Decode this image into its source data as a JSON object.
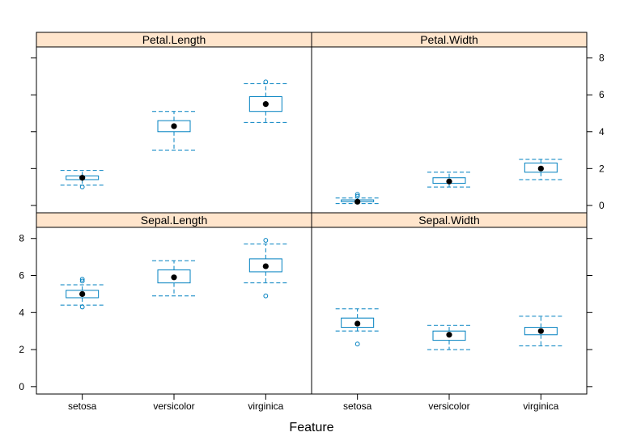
{
  "chart_data": {
    "type": "boxplot",
    "xlabel": "Feature",
    "categories": [
      "setosa",
      "versicolor",
      "virginica"
    ],
    "ylim": [
      -0.4,
      8.6
    ],
    "yticks": [
      0,
      2,
      4,
      6,
      8
    ],
    "grid": false,
    "colors": {
      "strip": "#ffe5cc",
      "box": "#0080c0",
      "median": "#000000",
      "frame": "#000000"
    },
    "panels": [
      {
        "title": "Petal.Length",
        "boxes": [
          {
            "category": "setosa",
            "min": 1.1,
            "q1": 1.4,
            "median": 1.5,
            "q3": 1.6,
            "max": 1.9,
            "outliers": [
              1.0
            ]
          },
          {
            "category": "versicolor",
            "min": 3.0,
            "q1": 4.0,
            "median": 4.3,
            "q3": 4.6,
            "max": 5.1,
            "outliers": []
          },
          {
            "category": "virginica",
            "min": 4.5,
            "q1": 5.1,
            "median": 5.5,
            "q3": 5.9,
            "max": 6.6,
            "outliers": [
              6.7
            ]
          }
        ]
      },
      {
        "title": "Petal.Width",
        "boxes": [
          {
            "category": "setosa",
            "min": 0.1,
            "q1": 0.2,
            "median": 0.2,
            "q3": 0.3,
            "max": 0.4,
            "outliers": [
              0.5,
              0.6
            ]
          },
          {
            "category": "versicolor",
            "min": 1.0,
            "q1": 1.2,
            "median": 1.3,
            "q3": 1.5,
            "max": 1.8,
            "outliers": []
          },
          {
            "category": "virginica",
            "min": 1.4,
            "q1": 1.8,
            "median": 2.0,
            "q3": 2.3,
            "max": 2.5,
            "outliers": []
          }
        ]
      },
      {
        "title": "Sepal.Length",
        "boxes": [
          {
            "category": "setosa",
            "min": 4.4,
            "q1": 4.8,
            "median": 5.0,
            "q3": 5.2,
            "max": 5.5,
            "outliers": [
              4.3,
              5.7,
              5.8
            ]
          },
          {
            "category": "versicolor",
            "min": 4.9,
            "q1": 5.6,
            "median": 5.9,
            "q3": 6.3,
            "max": 6.8,
            "outliers": []
          },
          {
            "category": "virginica",
            "min": 5.6,
            "q1": 6.2,
            "median": 6.5,
            "q3": 6.9,
            "max": 7.7,
            "outliers": [
              4.9,
              7.9
            ]
          }
        ]
      },
      {
        "title": "Sepal.Width",
        "boxes": [
          {
            "category": "setosa",
            "min": 3.0,
            "q1": 3.2,
            "median": 3.4,
            "q3": 3.7,
            "max": 4.2,
            "outliers": [
              2.3
            ]
          },
          {
            "category": "versicolor",
            "min": 2.0,
            "q1": 2.5,
            "median": 2.8,
            "q3": 3.0,
            "max": 3.3,
            "outliers": []
          },
          {
            "category": "virginica",
            "min": 2.2,
            "q1": 2.8,
            "median": 3.0,
            "q3": 3.2,
            "max": 3.8,
            "outliers": []
          }
        ]
      }
    ]
  }
}
